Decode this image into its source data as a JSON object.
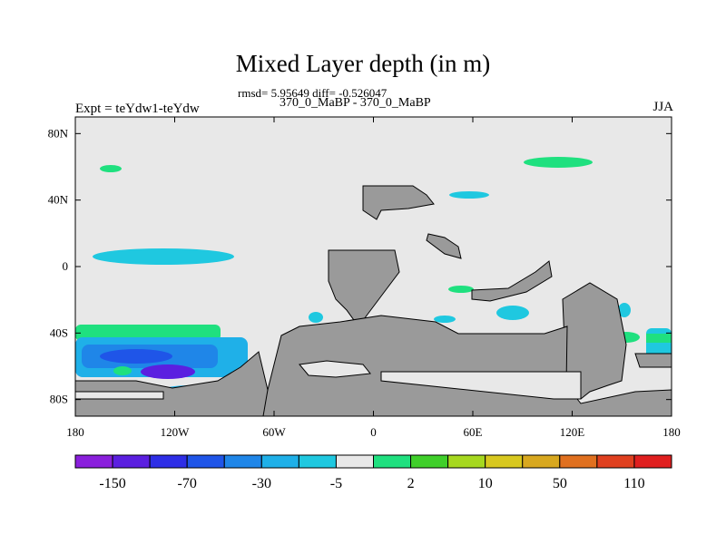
{
  "chart_data": {
    "type": "heatmap",
    "title": "Mixed Layer depth (in m)",
    "subtitle": "rmsd= 5.95649 diff= -0.526047",
    "left_label": "Expt = teYdw1-teYdw",
    "center_label": "370_0_MaBP - 370_0_MaBP",
    "right_label": "JJA",
    "x_ticks": [
      "180",
      "120W",
      "60W",
      "0",
      "60E",
      "120E",
      "180"
    ],
    "y_ticks": [
      "80N",
      "40N",
      "0",
      "40S",
      "80S"
    ],
    "xlim": [
      -180,
      180
    ],
    "ylim": [
      -90,
      90
    ],
    "colorbar": {
      "labels": [
        "-150",
        "-70",
        "-30",
        "-5",
        "2",
        "10",
        "50",
        "110"
      ],
      "colors": [
        "#8a1fdc",
        "#5b1fe0",
        "#2e2ee6",
        "#1f55e8",
        "#1f86e8",
        "#1fb0e8",
        "#1fc8e0",
        "#e8e8e8",
        "#1fe07f",
        "#3fcf2a",
        "#a6d81f",
        "#d8c81f",
        "#d8a81f",
        "#e0701f",
        "#e0401f",
        "#e01f1f"
      ]
    },
    "colors": {
      "land": "#9a9a9a",
      "ocean_near_zero": "#e8e8e8",
      "frame": "#000000"
    }
  }
}
